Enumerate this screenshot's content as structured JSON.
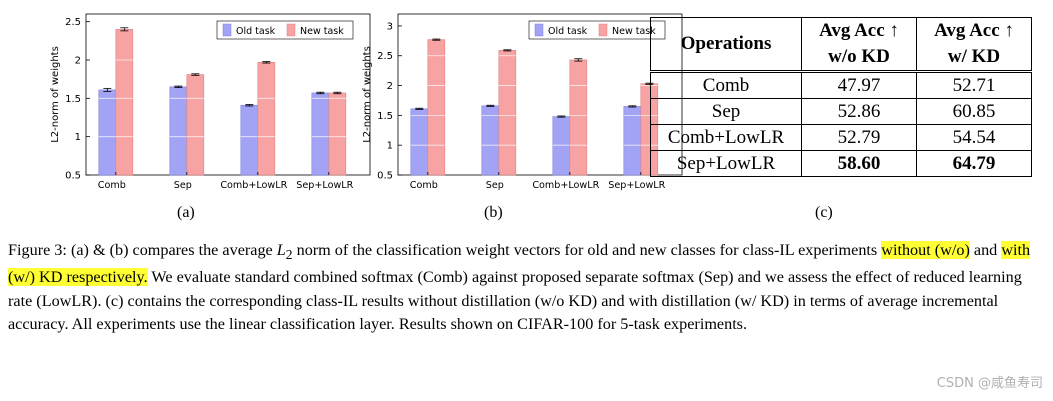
{
  "colors": {
    "old": "#a3a3f6",
    "new": "#f7a3a3",
    "old_edge": "#8080e0",
    "new_edge": "#e08080",
    "highlight": "#ffff33"
  },
  "chart_data": [
    {
      "type": "bar",
      "ylabel": "L2-norm of weights",
      "categories": [
        "Comb",
        "Sep",
        "Comb+LowLR",
        "Sep+LowLR"
      ],
      "ylim": [
        0.5,
        2.6
      ],
      "yticks": [
        "0.5",
        "1",
        "1.5",
        "2",
        "2.5"
      ],
      "grid": true,
      "legend": "top-right",
      "series": [
        {
          "name": "Old task",
          "values": [
            1.61,
            1.65,
            1.41,
            1.57
          ],
          "errors": [
            0.02,
            0.01,
            0.01,
            0.01
          ]
        },
        {
          "name": "New task",
          "values": [
            2.4,
            1.81,
            1.97,
            1.57
          ],
          "errors": [
            0.02,
            0.01,
            0.01,
            0.01
          ]
        }
      ]
    },
    {
      "type": "bar",
      "ylabel": "L2-norm of weights",
      "categories": [
        "Comb",
        "Sep",
        "Comb+LowLR",
        "Sep+LowLR"
      ],
      "ylim": [
        0.5,
        3.2
      ],
      "yticks": [
        "0.5",
        "1",
        "1.5",
        "2",
        "2.5",
        "3"
      ],
      "grid": true,
      "legend": "top-right",
      "series": [
        {
          "name": "Old task",
          "values": [
            1.61,
            1.66,
            1.48,
            1.65
          ],
          "errors": [
            0.01,
            0.01,
            0.01,
            0.01
          ]
        },
        {
          "name": "New task",
          "values": [
            2.77,
            2.59,
            2.43,
            2.03
          ],
          "errors": [
            0.01,
            0.01,
            0.02,
            0.01
          ]
        }
      ]
    }
  ],
  "sublabels": {
    "a": "(a)",
    "b": "(b)",
    "c": "c)"
  },
  "table": {
    "headers": {
      "ops": "Operations",
      "col1_line1": "Avg Acc ↑",
      "col1_line2": "w/o KD",
      "col2_line1": "Avg Acc ↑",
      "col2_line2": "w/ KD"
    },
    "rows": [
      {
        "op": "Comb",
        "wo": "47.97",
        "w": "52.71"
      },
      {
        "op": "Sep",
        "wo": "52.86",
        "w": "60.85"
      },
      {
        "op": "Comb+LowLR",
        "wo": "52.79",
        "w": "54.54"
      },
      {
        "op": "Sep+LowLR",
        "wo": "58.60",
        "w": "64.79"
      }
    ]
  },
  "caption": {
    "p1": "Figure 3: (a) & (b) compares the average ",
    "math": "L",
    "math_sub": "2",
    "p2": " norm of the classification weight vectors for old and new classes for class-IL experiments ",
    "hl1": "without (w/o)",
    "p3": " and ",
    "hl2": "with (w/) KD respectively.",
    "p4": " We evaluate standard combined softmax (Comb) against proposed separate softmax (Sep) and we assess the effect of reduced learning rate (LowLR). (c) contains the corresponding class-IL results without distillation (w/o KD) and with distillation (w/ KD) in terms of average incremental accuracy. All experiments use the linear classification layer. Results shown on CIFAR-100 for 5-task experiments."
  },
  "watermark": "CSDN @咸鱼寿司"
}
